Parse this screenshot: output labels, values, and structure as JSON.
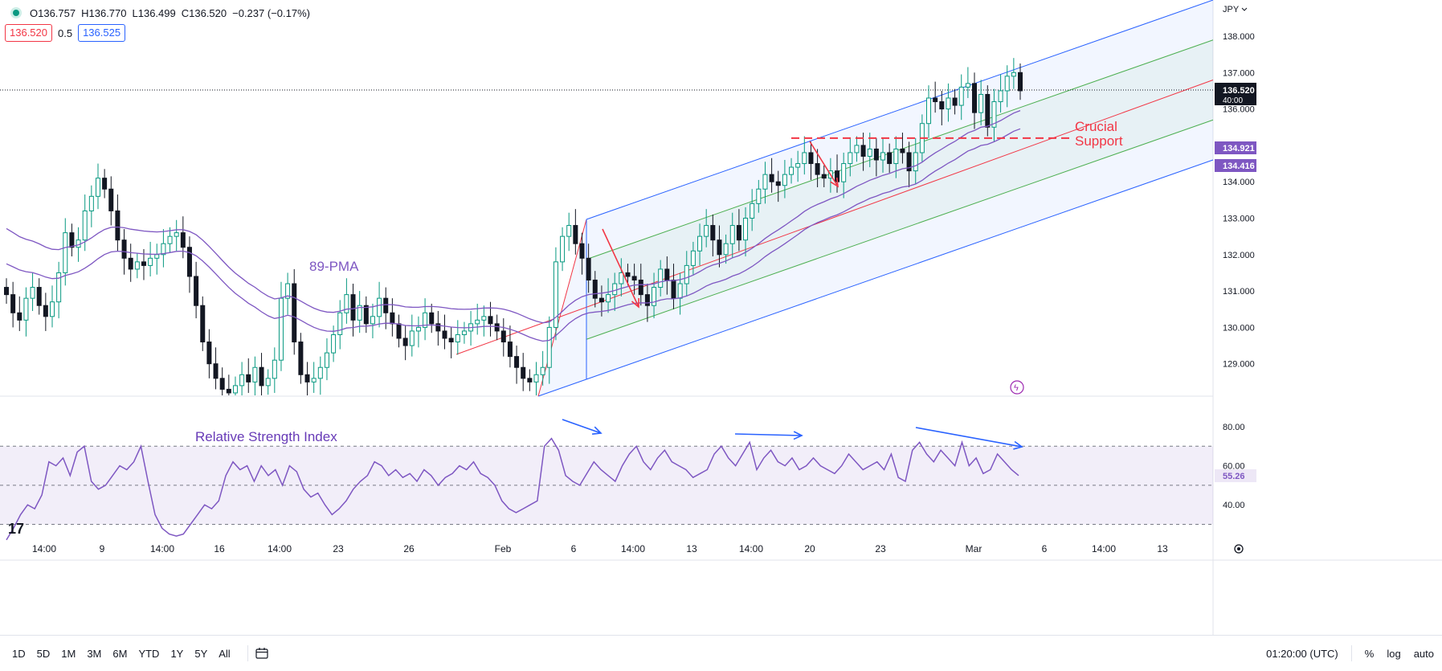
{
  "header": {
    "open": "O136.757",
    "high": "H136.770",
    "low": "L136.499",
    "close": "C136.520",
    "change": "−0.237 (−0.17%)",
    "bid": "136.520",
    "spread": "0.5",
    "ask": "136.525"
  },
  "axis": {
    "currency": "JPY",
    "price_ticks": [
      "138.000",
      "137.000",
      "136.000",
      "134.000",
      "133.000",
      "132.000",
      "131.000",
      "130.000",
      "129.000"
    ],
    "rsi_ticks": [
      "80.00",
      "60.00",
      "40.00"
    ],
    "time_labels": [
      "14:00",
      "9",
      "14:00",
      "16",
      "14:00",
      "23",
      "26",
      "Feb",
      "6",
      "14:00",
      "13",
      "14:00",
      "20",
      "23",
      "Mar",
      "6",
      "14:00",
      "13"
    ]
  },
  "labels": {
    "current_price": "136.520",
    "countdown": "40:00",
    "ma1": "134.921",
    "ma2": "134.416",
    "rsi_value": "55.26",
    "pma": "89-PMA",
    "rsi_title": "Relative Strength Index",
    "support_line1": "Crucial",
    "support_line2": "Support"
  },
  "toolbar": {
    "timeframes": [
      "1D",
      "5D",
      "1M",
      "3M",
      "6M",
      "YTD",
      "1Y",
      "5Y",
      "All"
    ],
    "clock": "01:20:00 (UTC)",
    "percent": "%",
    "log": "log",
    "auto": "auto"
  },
  "colors": {
    "up": "#089981",
    "down": "#131722",
    "ma": "#7e57c2",
    "channel": "#2962ff",
    "median": "#f23645",
    "inner": "#4caf50",
    "annotation": "#f23645",
    "arrow": "#2962ff"
  },
  "chart_data": {
    "type": "candlestick",
    "title": "",
    "symbol_currency": "JPY",
    "ylim": [
      128.2,
      139.0
    ],
    "rsi_ylim": [
      30,
      85
    ],
    "close_series": [
      130.9,
      130.4,
      130.2,
      130.8,
      131.1,
      130.6,
      130.3,
      130.7,
      131.5,
      132.6,
      132.2,
      132.4,
      133.2,
      133.6,
      134.1,
      133.8,
      133.2,
      132.4,
      131.9,
      131.6,
      131.8,
      131.7,
      131.9,
      132.0,
      132.3,
      132.5,
      132.6,
      132.2,
      131.4,
      130.6,
      129.6,
      129.0,
      128.6,
      128.3,
      128.2,
      128.4,
      128.7,
      128.5,
      128.9,
      128.4,
      128.6,
      129.1,
      130.8,
      131.2,
      129.6,
      128.7,
      128.5,
      128.6,
      128.9,
      129.3,
      129.8,
      130.4,
      130.9,
      130.2,
      130.6,
      130.1,
      130.3,
      130.8,
      130.4,
      130.1,
      129.7,
      129.5,
      129.9,
      130.0,
      130.4,
      130.1,
      129.9,
      129.7,
      129.6,
      129.8,
      129.9,
      130.1,
      130.2,
      130.3,
      130.1,
      129.9,
      129.6,
      129.2,
      128.9,
      128.6,
      128.5,
      128.7,
      128.9,
      130.0,
      131.8,
      132.5,
      132.8,
      132.3,
      131.9,
      131.3,
      130.8,
      130.7,
      130.9,
      131.2,
      131.5,
      131.4,
      131.3,
      130.9,
      130.6,
      131.1,
      131.6,
      131.3,
      130.8,
      131.2,
      131.7,
      132.1,
      132.5,
      132.8,
      132.4,
      132.0,
      132.3,
      132.8,
      132.4,
      133.0,
      133.4,
      133.8,
      134.2,
      134.0,
      133.9,
      134.2,
      134.4,
      134.5,
      134.8,
      134.5,
      134.2,
      134.1,
      134.3,
      134.0,
      134.5,
      134.8,
      135.0,
      134.7,
      134.9,
      134.6,
      134.8,
      134.5,
      134.9,
      134.8,
      134.3,
      134.8,
      135.6,
      136.3,
      136.2,
      136.0,
      136.3,
      136.1,
      136.6,
      136.7,
      135.9,
      136.4,
      135.5,
      136.2,
      136.5,
      136.9,
      137.0,
      136.5
    ],
    "ma_89_open_price": [
      134.921
    ],
    "ma_second": [
      134.416
    ],
    "rsi_current": 55.26,
    "rsi_levels": [
      70,
      50,
      30
    ],
    "annotations": [
      "89-PMA",
      "Relative Strength Index",
      "Crucial Support"
    ]
  }
}
